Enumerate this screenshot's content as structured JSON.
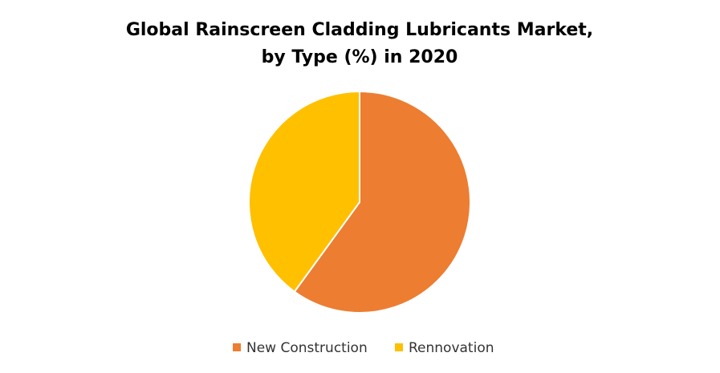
{
  "chart_data": {
    "type": "pie",
    "title": [
      "Global Rainscreen Cladding Lubricants Market,",
      "by Type  (%) in 2020"
    ],
    "categories": [
      "New Construction",
      "Rennovation"
    ],
    "values": [
      60,
      40
    ],
    "colors": [
      "#ed7d31",
      "#ffc000"
    ],
    "legend": "bottom"
  }
}
